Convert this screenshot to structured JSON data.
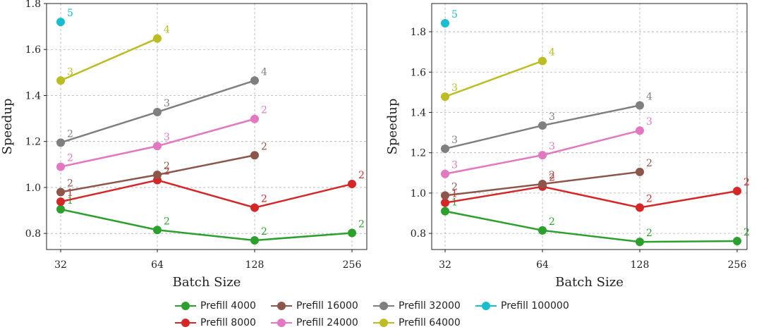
{
  "chart_data": [
    {
      "type": "line",
      "x_scale": "log2",
      "categories": [
        32,
        64,
        128,
        256
      ],
      "xlabel": "Batch Size",
      "ylabel": "Speedup",
      "ylim": [
        0.73,
        1.8
      ],
      "yticks": [
        "0.8",
        "1.0",
        "1.2",
        "1.4",
        "1.6",
        "1.8"
      ],
      "grid": true,
      "series": [
        {
          "name": "Prefill 4000",
          "color": "#2ca02c",
          "x": [
            32,
            64,
            128,
            256
          ],
          "values": [
            0.905,
            0.815,
            0.77,
            0.802
          ],
          "labels": [
            "1",
            "2",
            "2",
            "2"
          ]
        },
        {
          "name": "Prefill 8000",
          "color": "#d62728",
          "x": [
            32,
            64,
            128,
            256
          ],
          "values": [
            0.938,
            1.032,
            0.912,
            1.015
          ],
          "labels": [
            "1",
            "2",
            "2",
            "2"
          ]
        },
        {
          "name": "Prefill 16000",
          "color": "#8c564b",
          "x": [
            32,
            64,
            128
          ],
          "values": [
            0.98,
            1.055,
            1.14
          ],
          "labels": [
            "2",
            "2",
            "2"
          ]
        },
        {
          "name": "Prefill 24000",
          "color": "#e377c2",
          "x": [
            32,
            64,
            128
          ],
          "values": [
            1.09,
            1.18,
            1.298
          ],
          "labels": [
            "2",
            "3",
            "2"
          ]
        },
        {
          "name": "Prefill 32000",
          "color": "#7f7f7f",
          "x": [
            32,
            64,
            128
          ],
          "values": [
            1.195,
            1.328,
            1.465
          ],
          "labels": [
            "2",
            "3",
            "4"
          ]
        },
        {
          "name": "Prefill 64000",
          "color": "#bcbd22",
          "x": [
            32,
            64
          ],
          "values": [
            1.465,
            1.648
          ],
          "labels": [
            "3",
            "4"
          ]
        },
        {
          "name": "Prefill 100000",
          "color": "#17becf",
          "x": [
            32
          ],
          "values": [
            1.72
          ],
          "labels": [
            "5"
          ]
        }
      ]
    },
    {
      "type": "line",
      "x_scale": "log2",
      "categories": [
        32,
        64,
        128,
        256
      ],
      "xlabel": "Batch Size",
      "ylabel": "Speedup",
      "ylim": [
        0.72,
        1.94
      ],
      "yticks": [
        "0.8",
        "1.0",
        "1.2",
        "1.4",
        "1.6",
        "1.8"
      ],
      "grid": true,
      "series": [
        {
          "name": "Prefill 4000",
          "color": "#2ca02c",
          "x": [
            32,
            64,
            128,
            256
          ],
          "values": [
            0.91,
            0.815,
            0.758,
            0.762
          ],
          "labels": [
            "1",
            "2",
            "2",
            "2"
          ]
        },
        {
          "name": "Prefill 8000",
          "color": "#d62728",
          "x": [
            32,
            64,
            128,
            256
          ],
          "values": [
            0.952,
            1.032,
            0.928,
            1.01
          ],
          "labels": [
            "1",
            "2",
            "2",
            "2"
          ]
        },
        {
          "name": "Prefill 16000",
          "color": "#8c564b",
          "x": [
            32,
            64,
            128
          ],
          "values": [
            0.988,
            1.045,
            1.105
          ],
          "labels": [
            "2",
            "2",
            "2"
          ]
        },
        {
          "name": "Prefill 24000",
          "color": "#e377c2",
          "x": [
            32,
            64,
            128
          ],
          "values": [
            1.095,
            1.188,
            1.31
          ],
          "labels": [
            "3",
            "3",
            "3"
          ]
        },
        {
          "name": "Prefill 32000",
          "color": "#7f7f7f",
          "x": [
            32,
            64,
            128
          ],
          "values": [
            1.22,
            1.335,
            1.435
          ],
          "labels": [
            "3",
            "3",
            "4"
          ]
        },
        {
          "name": "Prefill 64000",
          "color": "#bcbd22",
          "x": [
            32,
            64
          ],
          "values": [
            1.478,
            1.655
          ],
          "labels": [
            "3",
            "4"
          ]
        },
        {
          "name": "Prefill 100000",
          "color": "#17becf",
          "x": [
            32
          ],
          "values": [
            1.842
          ],
          "labels": [
            "5"
          ]
        }
      ]
    }
  ],
  "legend": {
    "placement": "bottom-center",
    "items": [
      {
        "label": "Prefill 4000",
        "color": "#2ca02c"
      },
      {
        "label": "Prefill 8000",
        "color": "#d62728"
      },
      {
        "label": "Prefill 16000",
        "color": "#8c564b"
      },
      {
        "label": "Prefill 24000",
        "color": "#e377c2"
      },
      {
        "label": "Prefill 32000",
        "color": "#7f7f7f"
      },
      {
        "label": "Prefill 64000",
        "color": "#bcbd22"
      },
      {
        "label": "Prefill 100000",
        "color": "#17becf"
      }
    ]
  }
}
